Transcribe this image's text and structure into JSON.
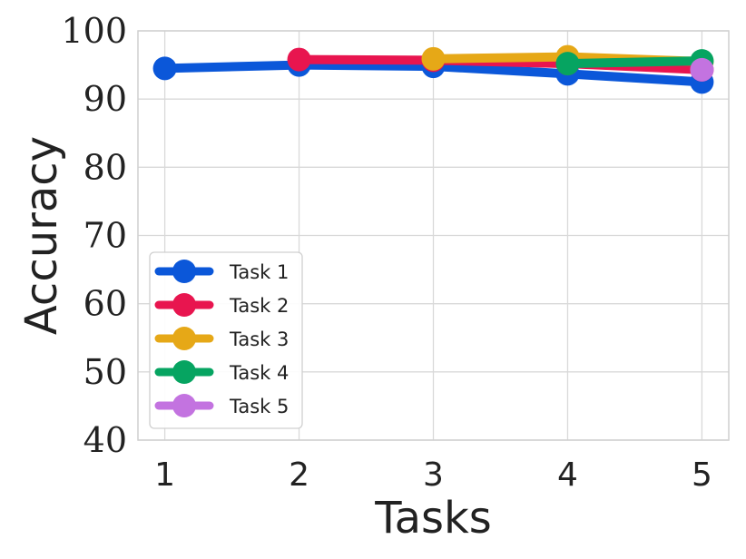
{
  "chart_data": {
    "type": "line",
    "x": [
      1,
      2,
      3,
      4,
      5
    ],
    "xlabel": "Tasks",
    "ylabel": "Accuracy",
    "ylim": [
      40,
      100
    ],
    "yticks": [
      40,
      50,
      60,
      70,
      80,
      90,
      100
    ],
    "xticks": [
      1,
      2,
      3,
      4,
      5
    ],
    "grid": true,
    "legend_position": "lower-left",
    "series": [
      {
        "name": "Task 1",
        "color": "#0b57d9",
        "x": [
          1,
          2,
          3,
          4,
          5
        ],
        "values": [
          94.5,
          95.0,
          94.8,
          93.7,
          92.5
        ]
      },
      {
        "name": "Task 2",
        "color": "#e8154f",
        "x": [
          2,
          3,
          4,
          5
        ],
        "values": [
          95.8,
          95.7,
          95.2,
          94.3
        ]
      },
      {
        "name": "Task 3",
        "color": "#e6a817",
        "x": [
          3,
          4,
          5
        ],
        "values": [
          95.9,
          96.2,
          95.5
        ]
      },
      {
        "name": "Task 4",
        "color": "#06a461",
        "x": [
          4,
          5
        ],
        "values": [
          95.2,
          95.6
        ]
      },
      {
        "name": "Task 5",
        "color": "#c373e0",
        "x": [
          5
        ],
        "values": [
          94.3
        ]
      }
    ]
  }
}
